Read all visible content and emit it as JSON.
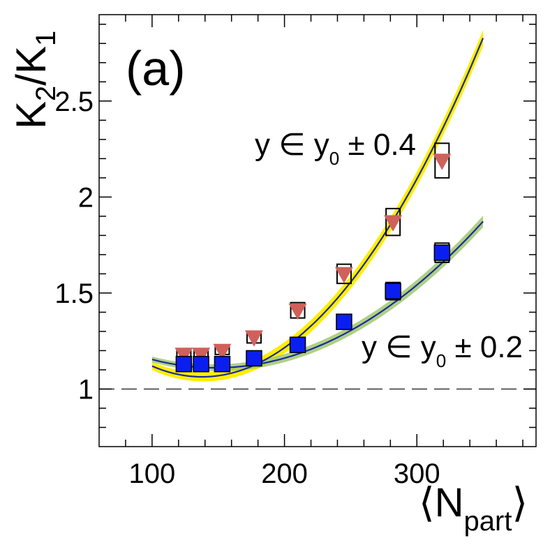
{
  "chart_data": {
    "type": "scatter",
    "panel_label": "(a)",
    "ylabel": {
      "main": "K",
      "sub1": "2",
      "sep": "/K",
      "sub2": "1"
    },
    "xlabel": {
      "open": "⟨N",
      "sub": "part",
      "close": "⟩"
    },
    "xlim": [
      60,
      390
    ],
    "ylim": [
      0.7,
      2.95
    ],
    "x_major_ticks": [
      100,
      200,
      300
    ],
    "x_tick_labels": [
      "100",
      "200",
      "300"
    ],
    "y_major_ticks": [
      1,
      1.5,
      2,
      2.5
    ],
    "y_tick_labels": [
      "1",
      "1.5",
      "2",
      "2.5"
    ],
    "reference_line": 1,
    "series": [
      {
        "name": "y ∈ y0 ± 0.4",
        "label": {
          "pre": "y ∈ y",
          "sub": "0",
          "post": " ± 0.4"
        },
        "marker": "triangle-down",
        "color": "#d0605a",
        "x": [
          124,
          137,
          153,
          177,
          210,
          245,
          282,
          319
        ],
        "y": [
          1.18,
          1.18,
          1.2,
          1.27,
          1.41,
          1.6,
          1.87,
          2.19
        ],
        "syst": [
          0.02,
          0.02,
          0.02,
          0.03,
          0.04,
          0.05,
          0.07,
          0.09
        ],
        "fit_coeffs": [
          1.8072,
          -0.0107964,
          3.91812e-05
        ],
        "fit_range": [
          100,
          350
        ],
        "fit_band_color": "#ffee00",
        "fit_band_width": 0.035,
        "fit_line_color": "#1a2a9a"
      },
      {
        "name": "y ∈ y0 ± 0.2",
        "label": {
          "pre": "y ∈ y",
          "sub": "0",
          "post": " ± 0.2"
        },
        "marker": "square",
        "color": "#0a1ef0",
        "x": [
          124,
          137,
          153,
          177,
          210,
          245,
          282,
          319
        ],
        "y": [
          1.13,
          1.13,
          1.13,
          1.16,
          1.23,
          1.35,
          1.51,
          1.71
        ],
        "syst": [
          0.015,
          0.015,
          0.015,
          0.02,
          0.025,
          0.03,
          0.045,
          0.05
        ],
        "fit_coeffs": [
          1.5209,
          -0.00554,
          1.87e-05
        ],
        "fit_range": [
          100,
          350
        ],
        "fit_band_color": "#a0c870",
        "fit_band_width": 0.025,
        "fit_line_color": "#1a2a9a"
      }
    ]
  }
}
